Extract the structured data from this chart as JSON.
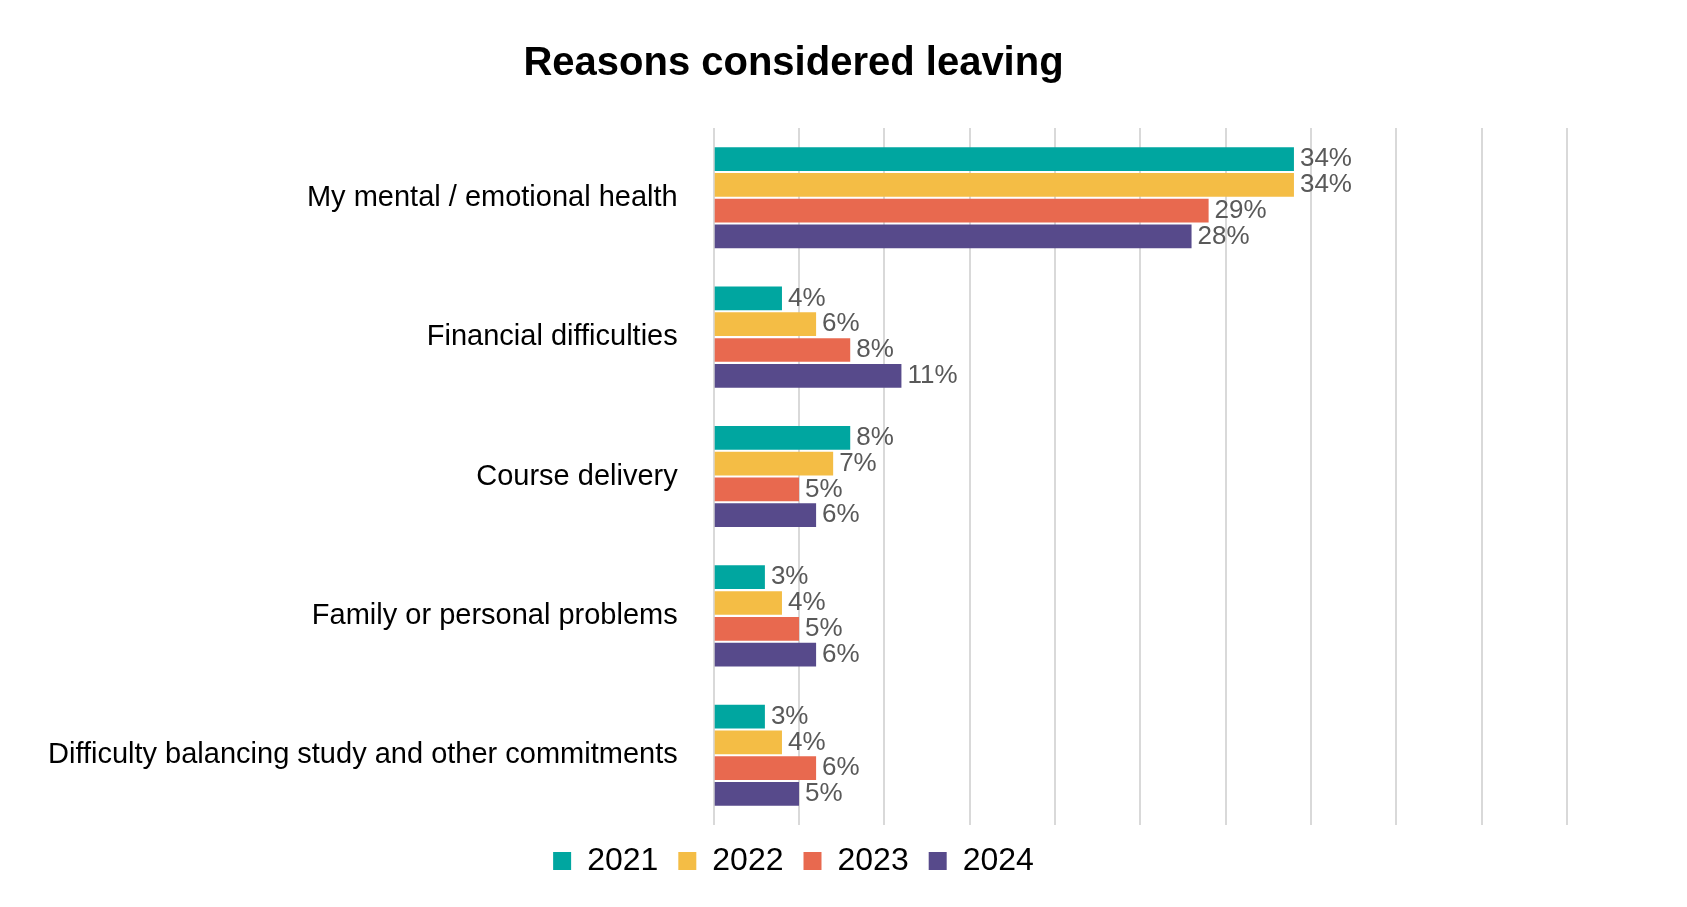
{
  "chart_data": {
    "type": "bar",
    "orientation": "horizontal",
    "title": "Reasons considered leaving",
    "categories": [
      "My mental / emotional health",
      "Financial difficulties",
      "Course delivery",
      "Family or personal problems",
      "Difficulty balancing study and other commitments"
    ],
    "series": [
      {
        "name": "2021",
        "color": "#00a6a0",
        "values": [
          34,
          4,
          8,
          3,
          3
        ],
        "value_labels": [
          "34%",
          "4%",
          "8%",
          "3%",
          "3%"
        ]
      },
      {
        "name": "2022",
        "color": "#f4bd45",
        "values": [
          34,
          6,
          7,
          4,
          4
        ],
        "value_labels": [
          "34%",
          "6%",
          "7%",
          "4%",
          "4%"
        ]
      },
      {
        "name": "2023",
        "color": "#e8694f",
        "values": [
          29,
          8,
          5,
          5,
          6
        ],
        "value_labels": [
          "29%",
          "8%",
          "5%",
          "5%",
          "6%"
        ]
      },
      {
        "name": "2024",
        "color": "#574a8b",
        "values": [
          28,
          11,
          6,
          6,
          5
        ],
        "value_labels": [
          "28%",
          "11%",
          "6%",
          "6%",
          "5%"
        ]
      }
    ],
    "xlim": [
      0,
      50
    ],
    "xticks": [
      {
        "value": 0,
        "label": null
      },
      {
        "value": 5,
        "label": null
      },
      {
        "value": 10,
        "label": null
      },
      {
        "value": 15,
        "label": null
      },
      {
        "value": 20,
        "label": null
      },
      {
        "value": 25,
        "label": null
      },
      {
        "value": 30,
        "label": null
      },
      {
        "value": 35,
        "label": null
      },
      {
        "value": 40,
        "label": null
      },
      {
        "value": 45,
        "label": null
      },
      {
        "value": 50,
        "label": null
      }
    ],
    "tick_labels": "y",
    "grid": "x",
    "legend": "bottom"
  }
}
